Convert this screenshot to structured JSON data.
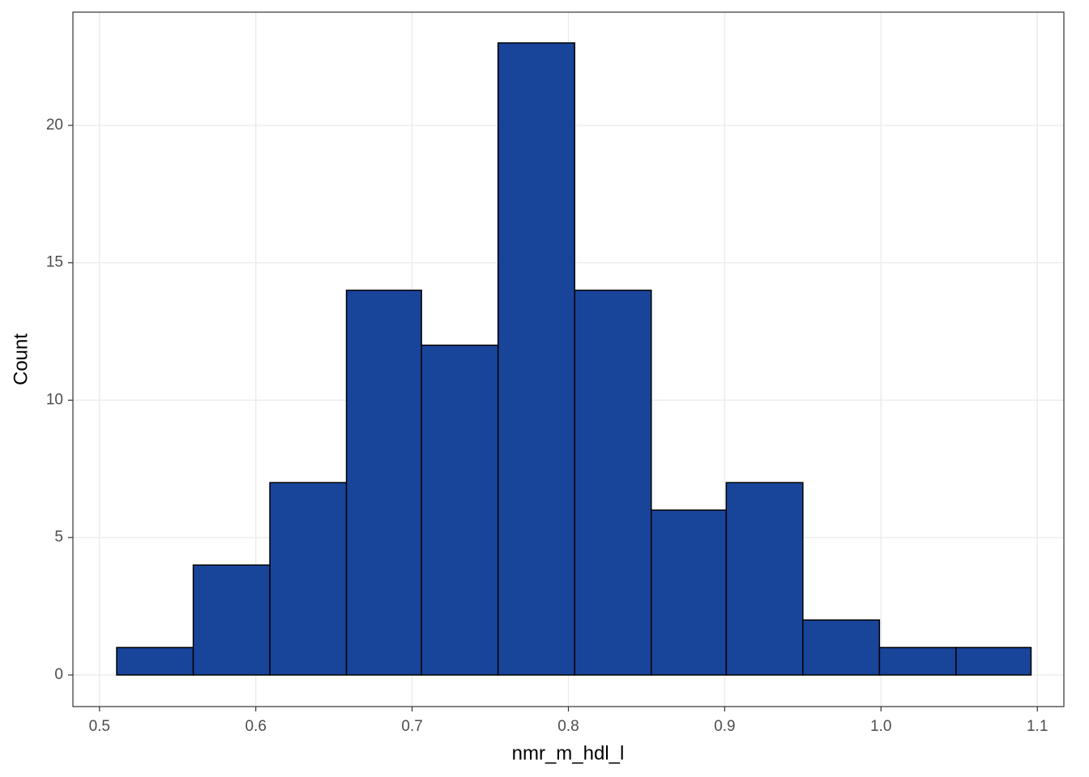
{
  "chart_data": {
    "type": "histogram",
    "x_label": "nmr_m_hdl_l",
    "y_label": "Count",
    "bins": [
      0.511,
      0.56,
      0.609,
      0.658,
      0.706,
      0.755,
      0.804,
      0.853,
      0.901,
      0.95,
      0.999,
      1.048,
      1.096
    ],
    "counts": [
      1,
      4,
      7,
      14,
      12,
      23,
      14,
      6,
      7,
      2,
      1,
      1
    ],
    "color": "#18449a",
    "edge_color": "#000000",
    "xlim": [
      0.483,
      1.117
    ],
    "ylim": [
      -1.15,
      24.12
    ],
    "xticks": [
      0.5,
      0.6,
      0.7,
      0.8,
      0.9,
      {
        "value": 1,
        "label": "1.0"
      },
      1.1
    ],
    "yticks": [
      0,
      5,
      10,
      15,
      20
    ],
    "grid": true
  }
}
